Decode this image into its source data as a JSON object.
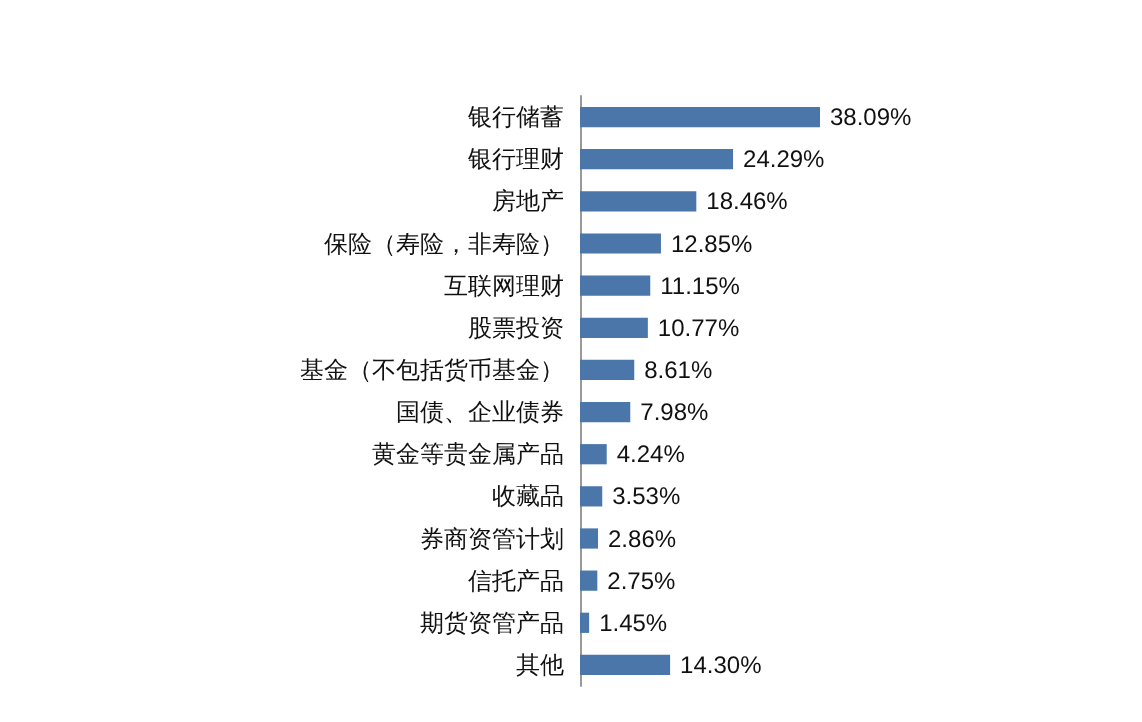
{
  "chart_data": {
    "type": "bar",
    "orientation": "horizontal",
    "categories": [
      "银行储蓄",
      "银行理财",
      "房地产",
      "保险（寿险，非寿险）",
      "互联网理财",
      "股票投资",
      "基金（不包括货币基金）",
      "国债、企业债券",
      "黄金等贵金属产品",
      "收藏品",
      "券商资管计划",
      "信托产品",
      "期货资管产品",
      "其他"
    ],
    "values": [
      38.09,
      24.29,
      18.46,
      12.85,
      11.15,
      10.77,
      8.61,
      7.98,
      4.24,
      3.53,
      2.86,
      2.75,
      1.45,
      14.3
    ],
    "value_labels": [
      "38.09%",
      "24.29%",
      "18.46%",
      "12.85%",
      "11.15%",
      "10.77%",
      "8.61%",
      "7.98%",
      "4.24%",
      "3.53%",
      "2.86%",
      "2.75%",
      "1.45%",
      "14.30%"
    ],
    "color": "#4a76aa",
    "tick_labels": "y"
  }
}
